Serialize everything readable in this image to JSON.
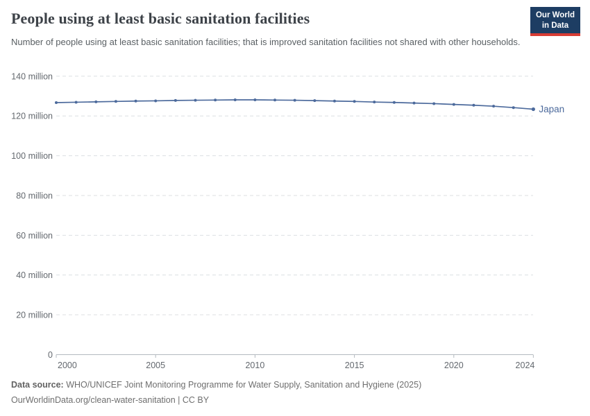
{
  "header": {
    "title": "People using at least basic sanitation facilities",
    "subtitle": "Number of people using at least basic sanitation facilities; that is improved sanitation facilities not shared with other households.",
    "logo": {
      "line1": "Our World",
      "line2": "in Data"
    }
  },
  "chart_data": {
    "type": "line",
    "title": "People using at least basic sanitation facilities",
    "xlabel": "",
    "ylabel": "",
    "unit": "million",
    "x": [
      2000,
      2001,
      2002,
      2003,
      2004,
      2005,
      2006,
      2007,
      2008,
      2009,
      2010,
      2011,
      2012,
      2013,
      2014,
      2015,
      2016,
      2017,
      2018,
      2019,
      2020,
      2021,
      2022,
      2023,
      2024
    ],
    "series": [
      {
        "name": "Japan",
        "values": [
          126.7,
          126.9,
          127.1,
          127.3,
          127.5,
          127.6,
          127.8,
          127.9,
          128.0,
          128.1,
          128.1,
          128.0,
          127.9,
          127.7,
          127.5,
          127.3,
          127.0,
          126.8,
          126.5,
          126.2,
          125.8,
          125.4,
          124.9,
          124.2,
          123.4
        ]
      }
    ],
    "x_ticks": [
      2000,
      2005,
      2010,
      2015,
      2020,
      2024
    ],
    "y_ticks": [
      0,
      20,
      40,
      60,
      80,
      100,
      120,
      140
    ],
    "y_tick_labels": [
      "0",
      "20 million",
      "40 million",
      "60 million",
      "80 million",
      "100 million",
      "120 million",
      "140 million"
    ],
    "xlim": [
      2000,
      2024
    ],
    "ylim": [
      0,
      140
    ],
    "grid": "horizontal-dashed",
    "legend": "line-end-label"
  },
  "footer": {
    "datasource_label": "Data source:",
    "datasource_text": "WHO/UNICEF Joint Monitoring Programme for Water Supply, Sanitation and Hygiene (2025)",
    "link_text": "OurWorldinData.org/clean-water-sanitation | CC BY"
  },
  "colors": {
    "line": "#4C6A9C",
    "grid": "#dcdfe2",
    "axis": "#b3b9bf",
    "tick_text": "#63686e",
    "logo_bg": "#1d3d63",
    "logo_accent": "#d73c34"
  }
}
